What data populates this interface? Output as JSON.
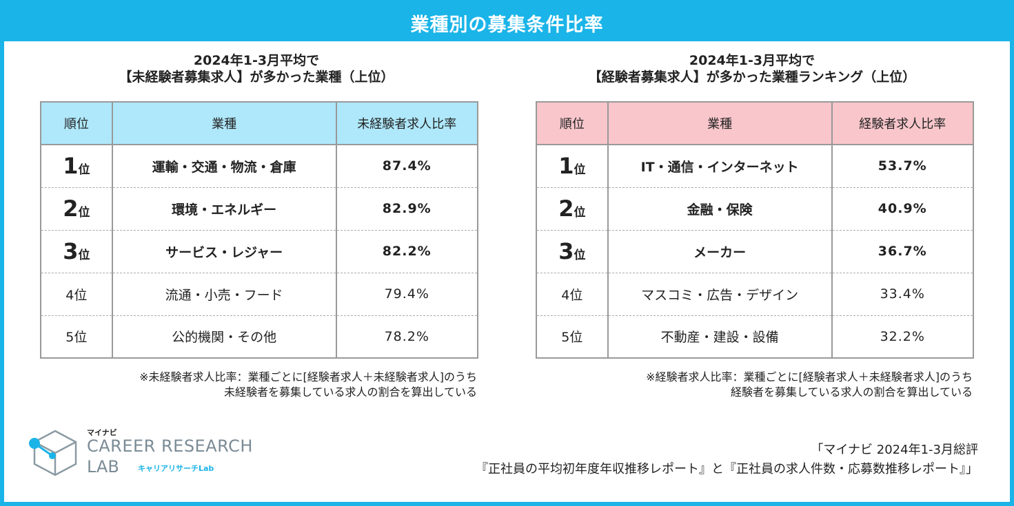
{
  "title": "業種別の募集条件比率",
  "left": {
    "heading_line1": "2024年1-3月平均で",
    "heading_line2": "【未経験者募集求人】が多かった業種（上位）",
    "headers": [
      "順位",
      "業種",
      "未経験者求人比率"
    ],
    "rows": [
      {
        "rank_num": "1",
        "rank_suffix": "位",
        "industry": "運輸・交通・物流・倉庫",
        "ratio": "87.4%"
      },
      {
        "rank_num": "2",
        "rank_suffix": "位",
        "industry": "環境・エネルギー",
        "ratio": "82.9%"
      },
      {
        "rank_num": "3",
        "rank_suffix": "位",
        "industry": "サービス・レジャー",
        "ratio": "82.2%"
      },
      {
        "rank": "4位",
        "industry": "流通・小売・フード",
        "ratio": "79.4%"
      },
      {
        "rank": "5位",
        "industry": "公的機関・その他",
        "ratio": "78.2%"
      }
    ],
    "note_line1": "※未経験者求人比率：業種ごとに[経験者求人＋未経験者求人]のうち",
    "note_line2": "未経験者を募集している求人の割合を算出している",
    "header_color": "#aee8fa"
  },
  "right": {
    "heading_line1": "2024年1-3月平均で",
    "heading_line2": "【経験者募集求人】が多かった業種ランキング（上位）",
    "headers": [
      "順位",
      "業種",
      "経験者求人比率"
    ],
    "rows": [
      {
        "rank_num": "1",
        "rank_suffix": "位",
        "industry": "IT・通信・インターネット",
        "ratio": "53.7%"
      },
      {
        "rank_num": "2",
        "rank_suffix": "位",
        "industry": "金融・保険",
        "ratio": "40.9%"
      },
      {
        "rank_num": "3",
        "rank_suffix": "位",
        "industry": "メーカー",
        "ratio": "36.7%"
      },
      {
        "rank": "4位",
        "industry": "マスコミ・広告・デザイン",
        "ratio": "33.4%"
      },
      {
        "rank": "5位",
        "industry": "不動産・建設・設備",
        "ratio": "32.2%"
      }
    ],
    "note_line1": "※経験者求人比率：業種ごとに[経験者求人＋未経験者求人]のうち",
    "note_line2": "経験者を募集している求人の割合を算出している",
    "header_color": "#f8c6cb"
  },
  "logo": {
    "small": "マイナビ",
    "line1": "CAREER RESEARCH",
    "line2": "LAB",
    "jp": "キャリアリサーチLab"
  },
  "source_line1": "「マイナビ 2024年1-3月総評",
  "source_line2": "『正社員の平均初年度年収推移レポート』と『正社員の求人件数・応募数推移レポート』」",
  "accent_color": "#1ab4e8"
}
